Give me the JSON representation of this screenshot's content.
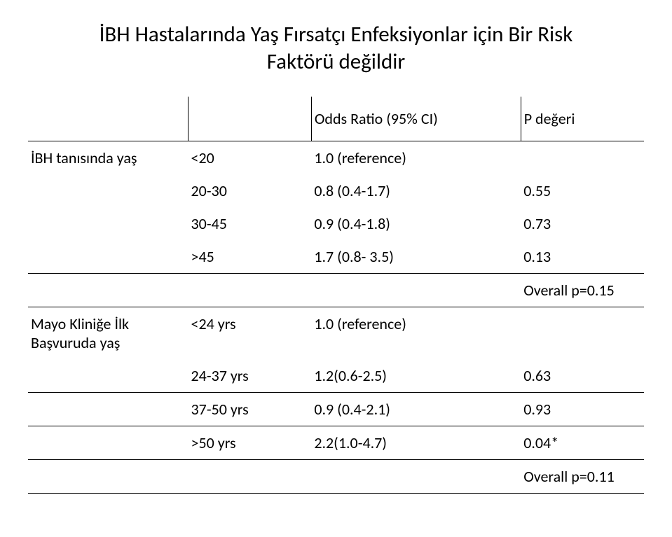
{
  "title_line1": "İBH Hastalarında Yaş Fırsatçı Enfeksiyonlar için Bir Risk",
  "title_line2": "Faktörü değildir",
  "header": {
    "odds": "Odds Ratio (95% CI)",
    "p": "P değeri"
  },
  "section1": {
    "label": "İBH tanısında yaş",
    "rows": [
      {
        "cat": "<20",
        "or": "1.0 (reference)",
        "p": ""
      },
      {
        "cat": "20-30",
        "or": "0.8 (0.4-1.7)",
        "p": "0.55"
      },
      {
        "cat": "30-45",
        "or": "0.9 (0.4-1.8)",
        "p": "0.73"
      },
      {
        "cat": ">45",
        "or": "1.7 (0.8- 3.5)",
        "p": "0.13"
      }
    ]
  },
  "section2": {
    "overall": "Overall p=0.15",
    "label_line1": "Mayo Kliniğe İlk",
    "label_line2": "Başvuruda yaş",
    "rows": [
      {
        "cat": "<24 yrs",
        "or": "1.0 (reference)",
        "p": ""
      },
      {
        "cat": "24-37 yrs",
        "or": "1.2(0.6-2.5)",
        "p": "0.63"
      },
      {
        "cat": "37-50 yrs",
        "or": "0.9 (0.4-2.1)",
        "p": "0.93"
      },
      {
        "cat": ">50 yrs",
        "or": "2.2(1.0-4.7)",
        "p": "0.04*"
      }
    ],
    "overall_bottom": "Overall p=0.11"
  }
}
